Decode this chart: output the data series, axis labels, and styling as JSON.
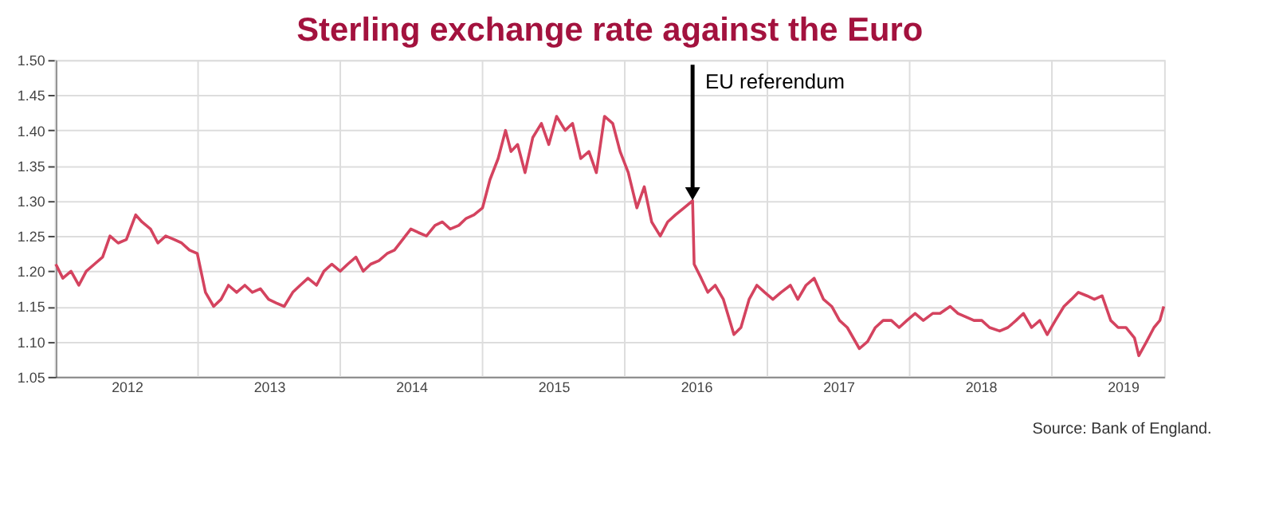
{
  "chart_data": {
    "type": "line",
    "title": "Sterling exchange rate against the Euro",
    "annotations": [
      {
        "text": "EU referendum",
        "x": "2016-06-23",
        "y": 1.31
      },
      "Source: Bank of England."
    ],
    "x": [
      "2012-01-02",
      "2012-01-20",
      "2012-02-10",
      "2012-03-01",
      "2012-03-20",
      "2012-04-10",
      "2012-05-01",
      "2012-05-20",
      "2012-06-10",
      "2012-07-01",
      "2012-07-25",
      "2012-08-10",
      "2012-09-01",
      "2012-09-20",
      "2012-10-10",
      "2012-11-01",
      "2012-11-20",
      "2012-12-10",
      "2012-12-30",
      "2013-01-20",
      "2013-02-10",
      "2013-03-01",
      "2013-03-20",
      "2013-04-10",
      "2013-05-01",
      "2013-05-20",
      "2013-06-10",
      "2013-07-01",
      "2013-07-20",
      "2013-08-10",
      "2013-09-01",
      "2013-09-20",
      "2013-10-10",
      "2013-11-01",
      "2013-11-20",
      "2013-12-10",
      "2014-01-01",
      "2014-01-20",
      "2014-02-10",
      "2014-03-01",
      "2014-03-20",
      "2014-04-10",
      "2014-05-01",
      "2014-05-20",
      "2014-06-10",
      "2014-07-01",
      "2014-07-20",
      "2014-08-10",
      "2014-09-01",
      "2014-09-20",
      "2014-10-10",
      "2014-11-01",
      "2014-11-20",
      "2014-12-10",
      "2015-01-01",
      "2015-01-20",
      "2015-02-10",
      "2015-03-01",
      "2015-03-15",
      "2015-04-01",
      "2015-04-20",
      "2015-05-10",
      "2015-06-01",
      "2015-06-20",
      "2015-07-10",
      "2015-08-01",
      "2015-08-20",
      "2015-09-10",
      "2015-10-01",
      "2015-10-20",
      "2015-11-10",
      "2015-12-01",
      "2015-12-20",
      "2016-01-10",
      "2016-02-01",
      "2016-02-20",
      "2016-03-10",
      "2016-04-01",
      "2016-04-20",
      "2016-05-10",
      "2016-06-01",
      "2016-06-23",
      "2016-06-27",
      "2016-07-15",
      "2016-08-01",
      "2016-08-20",
      "2016-09-10",
      "2016-10-07",
      "2016-10-25",
      "2016-11-15",
      "2016-12-05",
      "2016-12-25",
      "2017-01-15",
      "2017-02-05",
      "2017-03-01",
      "2017-03-20",
      "2017-04-10",
      "2017-05-01",
      "2017-05-25",
      "2017-06-15",
      "2017-07-05",
      "2017-07-25",
      "2017-08-25",
      "2017-09-15",
      "2017-10-05",
      "2017-10-25",
      "2017-11-15",
      "2017-12-05",
      "2017-12-25",
      "2018-01-15",
      "2018-02-05",
      "2018-03-01",
      "2018-03-20",
      "2018-04-15",
      "2018-05-05",
      "2018-05-25",
      "2018-06-15",
      "2018-07-05",
      "2018-07-25",
      "2018-08-20",
      "2018-09-10",
      "2018-10-01",
      "2018-10-20",
      "2018-11-10",
      "2018-12-01",
      "2018-12-20",
      "2019-01-10",
      "2019-02-01",
      "2019-02-20",
      "2019-03-10",
      "2019-04-01",
      "2019-04-20",
      "2019-05-10",
      "2019-06-01",
      "2019-06-20",
      "2019-07-10",
      "2019-08-01",
      "2019-08-12",
      "2019-09-01",
      "2019-09-20",
      "2019-10-05",
      "2019-10-15"
    ],
    "series": [
      {
        "color": "#d4435f",
        "values": [
          1.21,
          1.19,
          1.2,
          1.18,
          1.2,
          1.21,
          1.22,
          1.25,
          1.24,
          1.245,
          1.28,
          1.27,
          1.26,
          1.24,
          1.25,
          1.245,
          1.24,
          1.23,
          1.225,
          1.17,
          1.15,
          1.16,
          1.18,
          1.17,
          1.18,
          1.17,
          1.175,
          1.16,
          1.155,
          1.15,
          1.17,
          1.18,
          1.19,
          1.18,
          1.2,
          1.21,
          1.2,
          1.21,
          1.22,
          1.2,
          1.21,
          1.215,
          1.225,
          1.23,
          1.245,
          1.26,
          1.255,
          1.25,
          1.265,
          1.27,
          1.26,
          1.265,
          1.275,
          1.28,
          1.29,
          1.33,
          1.36,
          1.4,
          1.37,
          1.38,
          1.34,
          1.39,
          1.41,
          1.38,
          1.42,
          1.4,
          1.41,
          1.36,
          1.37,
          1.34,
          1.42,
          1.41,
          1.37,
          1.34,
          1.29,
          1.32,
          1.27,
          1.25,
          1.27,
          1.28,
          1.29,
          1.3,
          1.21,
          1.19,
          1.17,
          1.18,
          1.16,
          1.11,
          1.12,
          1.16,
          1.18,
          1.17,
          1.16,
          1.17,
          1.18,
          1.16,
          1.18,
          1.19,
          1.16,
          1.15,
          1.13,
          1.12,
          1.09,
          1.1,
          1.12,
          1.13,
          1.13,
          1.12,
          1.13,
          1.14,
          1.13,
          1.14,
          1.14,
          1.15,
          1.14,
          1.135,
          1.13,
          1.13,
          1.12,
          1.115,
          1.12,
          1.13,
          1.14,
          1.12,
          1.13,
          1.11,
          1.13,
          1.15,
          1.16,
          1.17,
          1.165,
          1.16,
          1.165,
          1.13,
          1.12,
          1.12,
          1.105,
          1.08,
          1.1,
          1.12,
          1.13,
          1.15
        ]
      }
    ],
    "xlim": [
      "2012-01-01",
      "2019-10-16"
    ],
    "xticks": [
      {
        "value": "2012-01-01",
        "label": null
      },
      {
        "value": "2012-07-02",
        "label": "2012"
      },
      {
        "value": "2013-01-01",
        "label": null
      },
      {
        "value": "2013-07-02",
        "label": "2013"
      },
      {
        "value": "2014-01-01",
        "label": null
      },
      {
        "value": "2014-07-02",
        "label": "2014"
      },
      {
        "value": "2015-01-01",
        "label": null
      },
      {
        "value": "2015-07-02",
        "label": "2015"
      },
      {
        "value": "2016-01-01",
        "label": null
      },
      {
        "value": "2016-07-02",
        "label": "2016"
      },
      {
        "value": "2017-01-01",
        "label": null
      },
      {
        "value": "2017-07-02",
        "label": "2017"
      },
      {
        "value": "2018-01-01",
        "label": null
      },
      {
        "value": "2018-07-02",
        "label": "2018"
      },
      {
        "value": "2019-01-01",
        "label": null
      },
      {
        "value": "2019-07-02",
        "label": "2019"
      }
    ],
    "ylim": [
      1.05,
      1.5
    ],
    "yticks": [
      1.05,
      {
        "value": 1.1,
        "label": "1.10"
      },
      1.15,
      {
        "value": 1.2,
        "label": "1.20"
      },
      1.25,
      {
        "value": 1.3,
        "label": "1.30"
      },
      1.35,
      {
        "value": 1.4,
        "label": "1.40"
      },
      1.45,
      {
        "value": 1.5,
        "label": "1.50"
      }
    ],
    "grid": true,
    "legend": false,
    "marker": "none",
    "line_style": "solid"
  }
}
